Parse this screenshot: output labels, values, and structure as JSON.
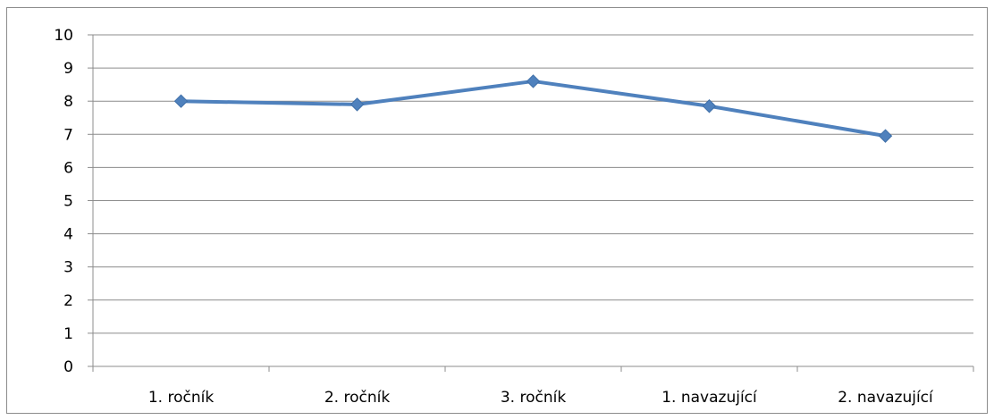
{
  "chart_data": {
    "type": "line",
    "categories": [
      "1. ročník",
      "2. ročník",
      "3. ročník",
      "1. navazující",
      "2. navazující"
    ],
    "series": [
      {
        "values": [
          8.0,
          7.9,
          8.6,
          7.85,
          6.95
        ],
        "color": "#4f81bd",
        "marker": "diamond"
      }
    ],
    "ylim": [
      0,
      10
    ],
    "yticks": [
      "0",
      "1",
      "2",
      "3",
      "4",
      "5",
      "6",
      "7",
      "8",
      "9",
      "10"
    ],
    "grid": true,
    "legend": "none",
    "title": "",
    "xlabel": "",
    "ylabel": ""
  }
}
